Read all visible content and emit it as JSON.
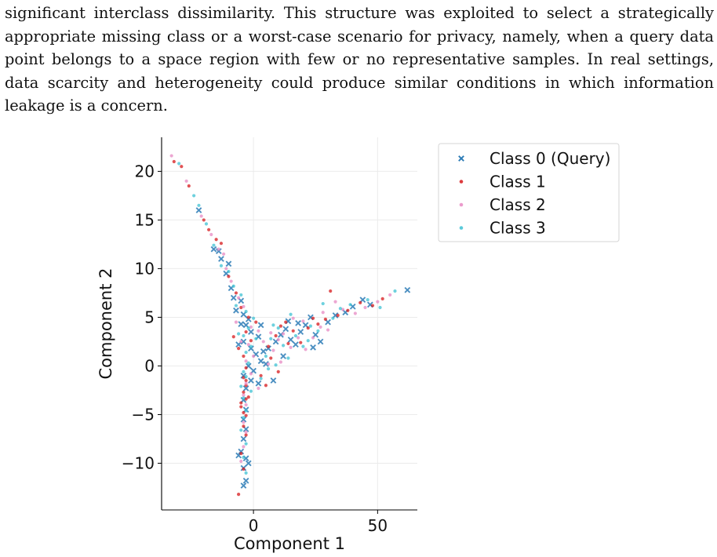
{
  "paragraph": {
    "lines": [
      "significant interclass dissimilarity. This structure was exploited to select a strategically",
      "appropriate missing class or a worst-case scenario for privacy, namely, when a query data",
      "point belongs to a space region with few or no representative samples. In real settings,",
      "data scarcity and heterogeneity could produce similar conditions in which information",
      "leakage is a concern."
    ]
  },
  "chart_data": {
    "type": "scatter",
    "xlabel": "Component 1",
    "ylabel": "Component 2",
    "xlim": [
      -37,
      66
    ],
    "ylim": [
      -14.8,
      23.5
    ],
    "xticks": [
      0,
      50
    ],
    "yticks": [
      -10,
      -5,
      0,
      5,
      10,
      15,
      20
    ],
    "grid": true,
    "legend_position": "outside-top-right",
    "series": [
      {
        "name": "Class 0 (Query)",
        "marker": "x",
        "color": "#2c7bb6",
        "points": [
          [
            -22,
            16
          ],
          [
            -16,
            12
          ],
          [
            -14,
            11.8
          ],
          [
            -13,
            11
          ],
          [
            -10,
            10.5
          ],
          [
            -11,
            9.5
          ],
          [
            -9,
            8
          ],
          [
            -8,
            7
          ],
          [
            -5,
            6.7
          ],
          [
            -7,
            5.7
          ],
          [
            -4,
            5.3
          ],
          [
            -2,
            4.8
          ],
          [
            -5,
            4.3
          ],
          [
            -3,
            4.2
          ],
          [
            -1,
            3.5
          ],
          [
            2,
            3
          ],
          [
            -4,
            2.5
          ],
          [
            -1,
            1.8
          ],
          [
            1,
            1.2
          ],
          [
            4,
            1.5
          ],
          [
            3,
            0.5
          ],
          [
            5,
            0.2
          ],
          [
            -2,
            0
          ],
          [
            0,
            -0.5
          ],
          [
            -4,
            -1
          ],
          [
            -1,
            -1.5
          ],
          [
            2,
            -1.8
          ],
          [
            -3,
            -2.3
          ],
          [
            -4,
            -3.5
          ],
          [
            -3,
            -4.5
          ],
          [
            -4,
            -5.5
          ],
          [
            -3,
            -6.5
          ],
          [
            -4,
            -7.5
          ],
          [
            -5,
            -8.8
          ],
          [
            -3,
            -9.5
          ],
          [
            -4,
            -10.5
          ],
          [
            -3,
            -11.8
          ],
          [
            -4,
            -12.3
          ],
          [
            -6,
            -9.2
          ],
          [
            -2,
            -10
          ],
          [
            6,
            1.8
          ],
          [
            9,
            2.5
          ],
          [
            11,
            3.2
          ],
          [
            13,
            3.8
          ],
          [
            15,
            2.7
          ],
          [
            17,
            2.2
          ],
          [
            19,
            3.5
          ],
          [
            21,
            4.2
          ],
          [
            23,
            5
          ],
          [
            25,
            3.2
          ],
          [
            27,
            2.5
          ],
          [
            30,
            4.5
          ],
          [
            33,
            5.2
          ],
          [
            37,
            5.5
          ],
          [
            40,
            6.1
          ],
          [
            44,
            6.8
          ],
          [
            47,
            6.3
          ],
          [
            62,
            7.8
          ],
          [
            18,
            4.4
          ],
          [
            24,
            1.9
          ],
          [
            12,
            1
          ],
          [
            8,
            -1.5
          ],
          [
            14,
            4.6
          ],
          [
            3,
            4.2
          ],
          [
            -6,
            2.2
          ]
        ]
      },
      {
        "name": "Class 1",
        "marker": "dot",
        "color": "#d7191c",
        "points": [
          [
            -32,
            21
          ],
          [
            -29,
            20.5
          ],
          [
            -26,
            18.5
          ],
          [
            -20,
            15
          ],
          [
            -18,
            14
          ],
          [
            -15,
            13
          ],
          [
            -13,
            12.6
          ],
          [
            -10,
            9.2
          ],
          [
            -7,
            7.5
          ],
          [
            -5,
            6
          ],
          [
            -2,
            5
          ],
          [
            1,
            4.5
          ],
          [
            -3,
            3.5
          ],
          [
            -1,
            2.6
          ],
          [
            -4,
            1
          ],
          [
            -3,
            -0.2
          ],
          [
            -4,
            -1.2
          ],
          [
            -3,
            -2
          ],
          [
            -4,
            -2.7
          ],
          [
            -3,
            -3.4
          ],
          [
            -5,
            -4.2
          ],
          [
            -4,
            -4.8
          ],
          [
            -3,
            -5.1
          ],
          [
            -4,
            -6.2
          ],
          [
            -3,
            -7.1
          ],
          [
            -5,
            -9
          ],
          [
            -4,
            -10.6
          ],
          [
            -6,
            -13.2
          ],
          [
            6,
            2
          ],
          [
            9,
            3.1
          ],
          [
            11,
            4.1
          ],
          [
            14,
            2.3
          ],
          [
            16,
            3.6
          ],
          [
            19,
            2.4
          ],
          [
            22,
            3.9
          ],
          [
            26,
            4.3
          ],
          [
            29,
            4.8
          ],
          [
            31,
            7.7
          ],
          [
            34,
            5.2
          ],
          [
            38,
            5.7
          ],
          [
            43,
            6.5
          ],
          [
            48,
            6.2
          ],
          [
            52,
            6.9
          ],
          [
            3,
            -1
          ],
          [
            5,
            -2
          ],
          [
            7,
            0.8
          ],
          [
            -8,
            3
          ],
          [
            -6,
            1.8
          ],
          [
            -2,
            -3.2
          ],
          [
            -5,
            -3.8
          ],
          [
            -3,
            -1.5
          ],
          [
            24,
            4.9
          ],
          [
            13,
            4.5
          ],
          [
            10,
            -0.6
          ]
        ]
      },
      {
        "name": "Class 2",
        "marker": "dot",
        "color": "#e78ac3",
        "points": [
          [
            -33,
            21.6
          ],
          [
            -27,
            19
          ],
          [
            -21,
            15.4
          ],
          [
            -17,
            13.5
          ],
          [
            -14,
            12
          ],
          [
            -12,
            11.5
          ],
          [
            -11,
            10
          ],
          [
            -9,
            8.7
          ],
          [
            -6,
            7
          ],
          [
            -4,
            6.1
          ],
          [
            -1,
            4
          ],
          [
            2,
            3.6
          ],
          [
            -2,
            2.2
          ],
          [
            0,
            1
          ],
          [
            -3,
            0.5
          ],
          [
            -1,
            -0.8
          ],
          [
            -3,
            -1.8
          ],
          [
            -4,
            -3
          ],
          [
            -3,
            -4
          ],
          [
            -4,
            -5.8
          ],
          [
            -3,
            -6.8
          ],
          [
            -4,
            -8.3
          ],
          [
            -5,
            -9.8
          ],
          [
            4,
            2.5
          ],
          [
            7,
            3.4
          ],
          [
            10,
            2.7
          ],
          [
            12,
            3.3
          ],
          [
            15,
            1.9
          ],
          [
            18,
            2.9
          ],
          [
            20,
            4.6
          ],
          [
            24,
            2.9
          ],
          [
            27,
            4
          ],
          [
            30,
            3.7
          ],
          [
            33,
            6.6
          ],
          [
            36,
            5.8
          ],
          [
            41,
            5.4
          ],
          [
            45,
            6
          ],
          [
            50,
            6.6
          ],
          [
            55,
            7.3
          ],
          [
            6,
            0.2
          ],
          [
            8,
            1.6
          ],
          [
            -7,
            4.5
          ],
          [
            -5,
            2.5
          ],
          [
            2,
            -2.3
          ],
          [
            16,
            4.9
          ],
          [
            21,
            1.7
          ],
          [
            11,
            0.4
          ],
          [
            28,
            5.5
          ]
        ]
      },
      {
        "name": "Class 3",
        "marker": "dot",
        "color": "#3ec1d3",
        "points": [
          [
            -30,
            20.8
          ],
          [
            -24,
            17.5
          ],
          [
            -22,
            16.5
          ],
          [
            -19,
            14.6
          ],
          [
            -16,
            12.4
          ],
          [
            -13,
            10.3
          ],
          [
            -10,
            9.7
          ],
          [
            -8,
            8.2
          ],
          [
            -5,
            7.3
          ],
          [
            -3,
            5.6
          ],
          [
            0,
            4.9
          ],
          [
            -2,
            3.9
          ],
          [
            -4,
            3.1
          ],
          [
            -1,
            2
          ],
          [
            -3,
            1.4
          ],
          [
            -2,
            0.3
          ],
          [
            -4,
            -0.6
          ],
          [
            -3,
            -1.1
          ],
          [
            -5,
            -2.1
          ],
          [
            -4,
            -3.3
          ],
          [
            -3,
            -4.6
          ],
          [
            -4,
            -5.3
          ],
          [
            -5,
            -6.6
          ],
          [
            -3,
            -8
          ],
          [
            -4,
            -9.4
          ],
          [
            -3,
            -11
          ],
          [
            5,
            1
          ],
          [
            7,
            2.8
          ],
          [
            10,
            3.9
          ],
          [
            12,
            2.1
          ],
          [
            14,
            0.8
          ],
          [
            17,
            3.1
          ],
          [
            20,
            2
          ],
          [
            23,
            4.1
          ],
          [
            26,
            3.6
          ],
          [
            28,
            6.4
          ],
          [
            32,
            4.9
          ],
          [
            35,
            5.9
          ],
          [
            39,
            6.3
          ],
          [
            46,
            6.8
          ],
          [
            51,
            6
          ],
          [
            57,
            7.7
          ],
          [
            3,
            -1.3
          ],
          [
            6,
            -0.3
          ],
          [
            9,
            0.1
          ],
          [
            -7,
            6.2
          ],
          [
            -6,
            3.3
          ],
          [
            -1,
            -2.6
          ],
          [
            1,
            2.8
          ],
          [
            15,
            5.3
          ],
          [
            22,
            2.6
          ],
          [
            8,
            4.2
          ]
        ]
      }
    ]
  }
}
